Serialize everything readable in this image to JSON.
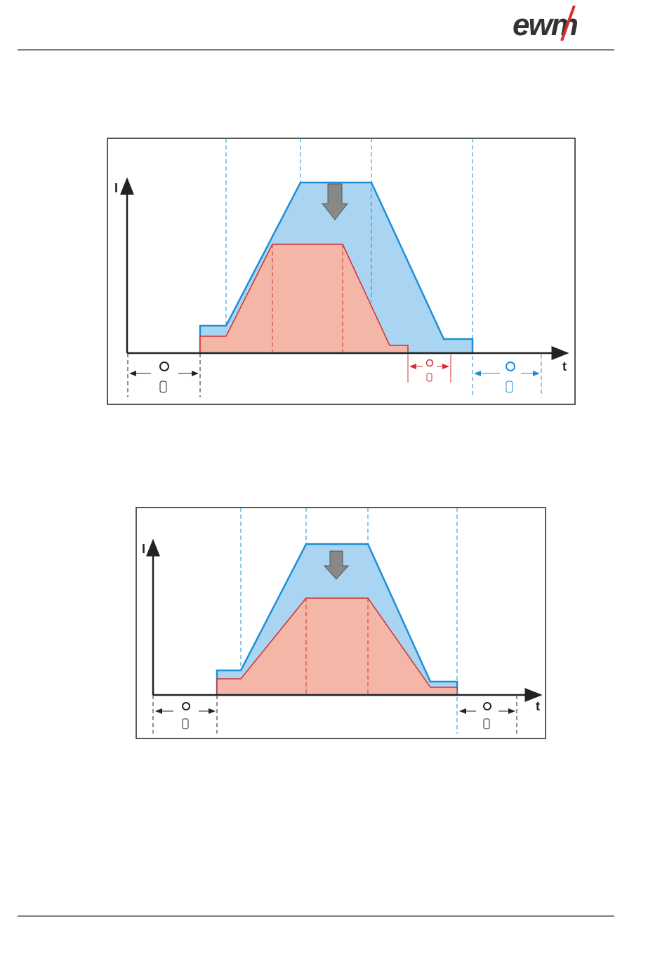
{
  "header": {
    "logo": "ewm"
  },
  "diagrams": [
    {
      "y_label": "I",
      "x_label": "t"
    },
    {
      "y_label": "I",
      "x_label": "t"
    }
  ]
}
